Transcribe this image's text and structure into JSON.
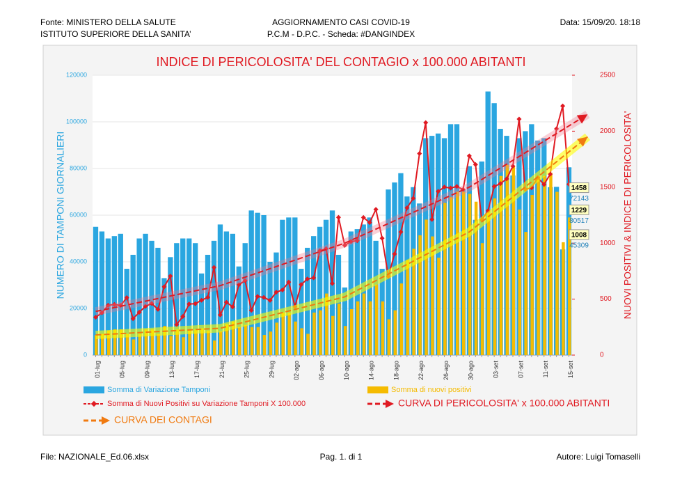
{
  "header": {
    "left": [
      "Fonte: MINISTERO DELLA SALUTE",
      "ISTITUTO SUPERIORE DELLA SANITA’"
    ],
    "center": [
      "AGGIORNAMENTO CASI COVID-19",
      "P.C.M  -  D.P.C.  - Scheda: #DANGINDEX"
    ],
    "right": "Data: 15/09/20. 18:18"
  },
  "footer": {
    "left": "File: NAZIONALE_Ed.06.xlsx",
    "center": "Pag. 1. di  1",
    "right": "Autore: Luigi Tomaselli"
  },
  "chart_data": {
    "type": "bar",
    "title": "INDICE DI PERICOLOSITA' DEL CONTAGIO  x  100.000 ABITANTI",
    "y_label": "NUMERO DI TAMPONI GIORNALIERI",
    "y2_label": "NUOVI POSITIVI  & INDICE DI PERICOLOSITA'",
    "categories": [
      "01-lug",
      null,
      null,
      null,
      "05-lug",
      null,
      null,
      null,
      "09-lug",
      null,
      null,
      null,
      "13-lug",
      null,
      null,
      null,
      "17-lug",
      null,
      null,
      null,
      "21-lug",
      null,
      null,
      null,
      "25-lug",
      null,
      null,
      null,
      "29-lug",
      null,
      null,
      null,
      "02-ago",
      null,
      null,
      null,
      "06-ago",
      null,
      null,
      null,
      "10-ago",
      null,
      null,
      null,
      "14-ago",
      null,
      null,
      null,
      "18-ago",
      null,
      null,
      null,
      "22-ago",
      null,
      null,
      null,
      "26-ago",
      null,
      null,
      null,
      "30-ago",
      null,
      null,
      null,
      "03-set",
      null,
      null,
      null,
      "07-set",
      null,
      null,
      null,
      "11-set",
      null,
      null,
      null,
      "15-set"
    ],
    "ylim": [
      0,
      120000
    ],
    "yticks": [
      0,
      20000,
      40000,
      60000,
      80000,
      100000,
      120000
    ],
    "y2lim": [
      0,
      2500
    ],
    "y2ticks": [
      0,
      500,
      1000,
      1500,
      2000,
      2500
    ],
    "series": [
      {
        "name": "Somma di Variazione Tamponi",
        "type": "bar",
        "color": "#2aa6e0",
        "values": [
          55000,
          53000,
          50000,
          51000,
          52000,
          37000,
          43000,
          50000,
          52000,
          49000,
          46000,
          33000,
          42000,
          48000,
          50000,
          50000,
          48000,
          35000,
          43000,
          49000,
          56000,
          53000,
          52000,
          38000,
          48000,
          62000,
          61000,
          60000,
          40000,
          44000,
          58000,
          59000,
          59000,
          37000,
          46000,
          51000,
          55000,
          58000,
          62000,
          43000,
          29000,
          53000,
          54000,
          56000,
          59000,
          49000,
          37000,
          71000,
          74000,
          78000,
          68000,
          72000,
          65000,
          93000,
          94000,
          95000,
          93000,
          99000,
          99000,
          71000,
          81000,
          58000,
          83000,
          113000,
          108000,
          97000,
          94000,
          77000,
          93000,
          96000,
          99000,
          92000,
          93000,
          72000,
          72143,
          45309,
          80517
        ]
      },
      {
        "name": "Somma di nuovi positivi",
        "type": "bar",
        "axis": "y2",
        "color": "#f5bb00",
        "values": [
          180,
          190,
          220,
          230,
          230,
          190,
          140,
          190,
          230,
          230,
          190,
          260,
          170,
          230,
          160,
          230,
          230,
          240,
          220,
          130,
          210,
          280,
          300,
          250,
          270,
          250,
          250,
          180,
          210,
          290,
          380,
          380,
          300,
          240,
          190,
          380,
          400,
          550,
          350,
          460,
          260,
          410,
          480,
          550,
          480,
          630,
          480,
          320,
          400,
          640,
          850,
          950,
          1070,
          1210,
          1060,
          870,
          1360,
          1410,
          1460,
          1460,
          1440,
          1370,
          1000,
          1300,
          1400,
          1600,
          1700,
          1690,
          1300,
          1100,
          1430,
          1600,
          1600,
          1630,
          1458,
          1008,
          1229
        ]
      },
      {
        "name": "Somma di Nuovi Positivi su Variazione Tamponi X 100.000",
        "type": "line",
        "axis": "y2",
        "color": "#e01a22",
        "values": [
          338,
          378,
          445,
          452,
          443,
          513,
          325,
          383,
          436,
          461,
          409,
          610,
          706,
          272,
          345,
          456,
          459,
          490,
          516,
          783,
          359,
          472,
          431,
          629,
          665,
          400,
          524,
          515,
          489,
          562,
          582,
          652,
          434,
          630,
          680,
          690,
          932,
          950,
          640,
          1230,
          980,
          1014,
          1022,
          1229,
          1184,
          1301,
          1044,
          703,
          903,
          1100,
          1315,
          1400,
          1800,
          2076,
          1212,
          1462,
          1501,
          1492,
          1506,
          1479,
          1779,
          1702,
          1207,
          1289,
          1506,
          1532,
          1574,
          1688,
          2108,
          1481,
          1494,
          1586,
          1524,
          1616,
          2021,
          2225,
          1526
        ]
      },
      {
        "name": "CURVA DI PERICOLOSITA' x 100.000 ABITANTI",
        "type": "trend",
        "axis": "y2",
        "color": "#e01a22",
        "x": [
          0,
          20,
          40,
          60,
          79
        ],
        "values": [
          390,
          620,
          1000,
          1500,
          2150
        ]
      },
      {
        "name": "CURVA DEI CONTAGI",
        "type": "trend",
        "axis": "y2",
        "color": "#f07a10",
        "x": [
          0,
          20,
          40,
          60,
          79
        ],
        "values": [
          180,
          240,
          520,
          1100,
          1950
        ]
      }
    ],
    "annotations": [
      "1229",
      "80517",
      "1458",
      "72143",
      "1008",
      "45309"
    ]
  }
}
